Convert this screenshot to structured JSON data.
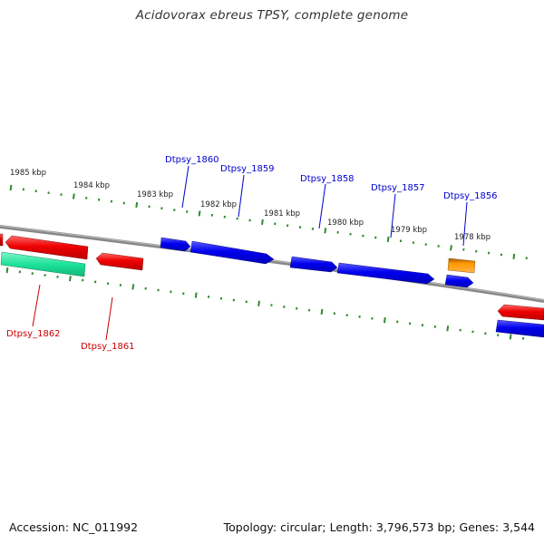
{
  "title": "Acidovorax ebreus TPSY, complete genome",
  "footer": {
    "accession": "Accession: NC_011992",
    "summary": "Topology: circular; Length: 3,796,573 bp; Genes: 3,544"
  },
  "colors": {
    "backbone": "#888888",
    "tick": "#2e8b2e",
    "forward_gene": "#0000ee",
    "reverse_gene": "#ee0000",
    "rna_gene": "#ff9900",
    "pseudo_gene": "#1de39a"
  },
  "ruler": {
    "unit": "kbp",
    "labels": [
      "1985 kbp",
      "1984 kbp",
      "1983 kbp",
      "1982 kbp",
      "1981 kbp",
      "1980 kbp",
      "1979 kbp",
      "1978 kbp"
    ]
  },
  "genes": {
    "labeled": [
      {
        "name": "Dtpsy_1860",
        "strand": "forward"
      },
      {
        "name": "Dtpsy_1859",
        "strand": "forward"
      },
      {
        "name": "Dtpsy_1858",
        "strand": "forward"
      },
      {
        "name": "Dtpsy_1857",
        "strand": "forward"
      },
      {
        "name": "Dtpsy_1856",
        "strand": "forward"
      },
      {
        "name": "Dtpsy_1862",
        "strand": "reverse"
      },
      {
        "name": "Dtpsy_1861",
        "strand": "reverse"
      }
    ]
  }
}
